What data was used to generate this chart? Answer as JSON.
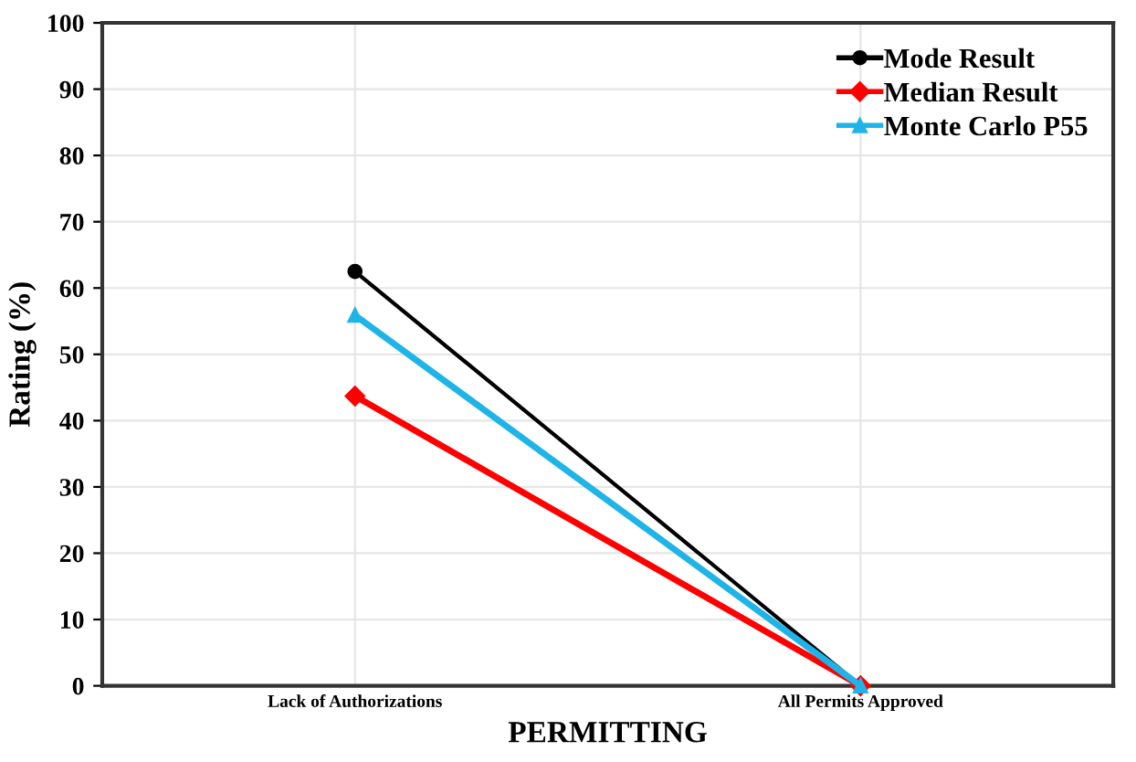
{
  "chart_data": {
    "type": "line",
    "xlabel": "PERMITTING",
    "ylabel": "Rating (%)",
    "categories": [
      "Lack of Authorizations",
      "All Permits Approved"
    ],
    "series": [
      {
        "name": "Mode Result",
        "color": "#000000",
        "marker": "circle",
        "values": [
          62.5,
          0
        ]
      },
      {
        "name": "Median Result",
        "color": "#ff0000",
        "marker": "diamond",
        "values": [
          43.7,
          0
        ]
      },
      {
        "name": "Monte Carlo P55",
        "color": "#1fb4e8",
        "marker": "triangle",
        "values": [
          55.9,
          0
        ]
      }
    ],
    "ylim": [
      0,
      100
    ],
    "yticks": [
      0,
      10,
      20,
      30,
      40,
      50,
      60,
      70,
      80,
      90,
      100
    ],
    "grid": true,
    "legend": "top right"
  }
}
